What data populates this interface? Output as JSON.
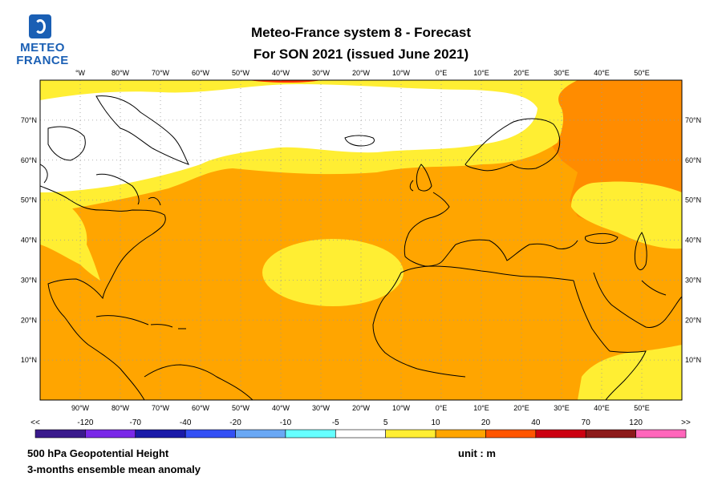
{
  "logo": {
    "line1": "METEO",
    "line2": "FRANCE"
  },
  "title": {
    "line1": "Meteo-France system 8  -  Forecast",
    "line2": "For SON 2021      (issued June 2021)"
  },
  "map": {
    "lon_range": [
      -100,
      60
    ],
    "lat_range": [
      0,
      80
    ],
    "top_lon_labels": [
      "°W",
      "80°W",
      "70°W",
      "60°W",
      "50°W",
      "40°W",
      "30°W",
      "20°W",
      "10°W",
      "0°E",
      "10°E",
      "20°E",
      "30°E",
      "40°E",
      "50°E"
    ],
    "bottom_lon_labels": [
      "90°W",
      "80°W",
      "70°W",
      "60°W",
      "50°W",
      "40°W",
      "30°W",
      "20°W",
      "10°W",
      "0°E",
      "10°E",
      "20°E",
      "30°E",
      "40°E",
      "50°E"
    ],
    "lat_labels": [
      "70°N",
      "60°N",
      "50°N",
      "40°N",
      "30°N",
      "20°N",
      "10°N"
    ],
    "colors": {
      "white": "#ffffff",
      "yellow": "#ffee33",
      "orange": "#ffa500",
      "dark_orange": "#ff8c00",
      "red": "#ff3300"
    }
  },
  "legend": {
    "left_arrow": "<<",
    "right_arrow": ">>",
    "labels": [
      "-120",
      "-70",
      "-40",
      "-20",
      "-10",
      "-5",
      "5",
      "10",
      "20",
      "40",
      "70",
      "120"
    ],
    "colors": [
      "#3a1a8c",
      "#7a28e8",
      "#1a1aa8",
      "#3350f5",
      "#6aa8f5",
      "#66ffff",
      "#ffffff",
      "#ffee33",
      "#ffa500",
      "#ff5500",
      "#cc0011",
      "#8c1a1a",
      "#ff66bb"
    ]
  },
  "footer": {
    "variable": "500 hPa Geopotential Height",
    "description": "3-months ensemble mean anomaly",
    "unit": "unit : m"
  }
}
